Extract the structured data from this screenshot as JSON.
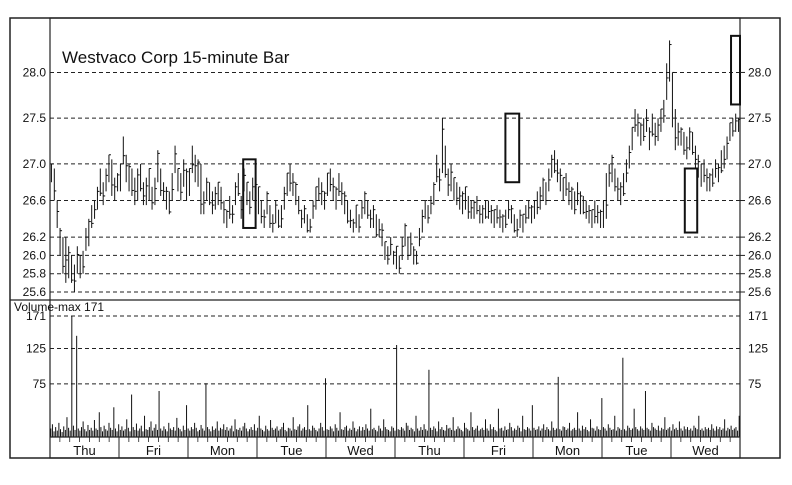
{
  "chart_data": {
    "title": "Westvaco Corp 15-minute Bar",
    "type": "ohlc-bar",
    "price_panel": {
      "ylim": [
        25.6,
        28.3
      ],
      "ticks": [
        "28.0",
        "27.5",
        "27.0",
        "26.6",
        "26.2",
        "26.0",
        "25.8",
        "25.6"
      ],
      "tick_values": [
        28.0,
        27.5,
        27.0,
        26.6,
        26.2,
        26.0,
        25.8,
        25.6
      ],
      "grid": "dashed",
      "series": [
        {
          "day": "Thu",
          "highs": [
            27.0,
            26.95,
            26.6,
            26.3,
            26.2,
            26.2,
            26.1,
            26.0,
            25.9,
            26.1,
            26.0,
            26.05
          ],
          "lows": [
            26.8,
            26.6,
            26.3,
            26.0,
            25.8,
            25.7,
            25.75,
            25.7,
            25.6,
            25.8,
            25.75,
            25.8
          ]
        },
        {
          "day": "Thu",
          "highs": [
            26.3,
            26.4,
            26.55,
            26.6,
            26.75,
            26.95,
            26.8,
            26.95,
            27.1,
            27.05,
            26.85,
            26.9
          ],
          "lows": [
            26.05,
            26.1,
            26.3,
            26.4,
            26.5,
            26.65,
            26.55,
            26.7,
            26.8,
            26.65,
            26.6,
            26.7
          ]
        },
        {
          "day": "Fri",
          "highs": [
            27.0,
            27.3,
            27.1,
            27.0,
            26.95,
            26.85,
            26.95,
            27.0,
            26.8,
            26.85,
            26.95,
            26.75,
            26.85,
            27.15,
            26.95,
            26.8,
            26.75,
            26.7,
            26.9,
            27.2,
            26.95,
            26.9,
            27.05,
            26.95
          ],
          "lows": [
            26.7,
            27.0,
            26.8,
            26.7,
            26.65,
            26.55,
            26.6,
            26.7,
            26.55,
            26.55,
            26.6,
            26.5,
            26.55,
            26.8,
            26.65,
            26.6,
            26.5,
            26.45,
            26.6,
            26.9,
            26.7,
            26.6,
            26.75,
            26.6
          ]
        },
        {
          "day": "Mon",
          "highs": [
            26.95,
            27.2,
            27.1,
            27.05,
            27.0,
            26.7,
            26.85,
            26.8,
            26.7,
            26.75,
            26.8,
            26.75,
            26.6,
            26.5,
            26.65,
            26.55,
            26.8,
            26.9,
            26.65,
            26.95,
            26.8,
            26.7,
            26.85,
            26.8
          ],
          "lows": [
            26.65,
            26.9,
            26.8,
            26.75,
            26.45,
            26.45,
            26.6,
            26.55,
            26.45,
            26.5,
            26.55,
            26.5,
            26.35,
            26.3,
            26.4,
            26.35,
            26.55,
            26.65,
            26.4,
            26.7,
            26.55,
            26.45,
            26.6,
            26.55
          ]
        },
        {
          "day": "Tue",
          "highs": [
            26.75,
            26.6,
            26.5,
            26.7,
            26.55,
            26.45,
            26.6,
            26.5,
            26.55,
            26.75,
            26.9,
            27.0,
            26.9,
            26.8,
            26.65,
            26.5,
            26.55,
            26.45,
            26.4,
            26.6,
            26.75,
            26.85,
            26.8,
            26.7
          ],
          "lows": [
            26.45,
            26.35,
            26.3,
            26.45,
            26.3,
            26.25,
            26.35,
            26.3,
            26.3,
            26.5,
            26.65,
            26.7,
            26.65,
            26.55,
            26.45,
            26.3,
            26.35,
            26.25,
            26.25,
            26.4,
            26.5,
            26.6,
            26.55,
            26.5
          ]
        },
        {
          "day": "Wed",
          "highs": [
            26.9,
            26.95,
            26.85,
            26.75,
            26.9,
            26.8,
            26.7,
            26.6,
            26.5,
            26.4,
            26.55,
            26.45,
            26.6,
            26.7,
            26.6,
            26.5,
            26.55,
            26.45,
            26.4,
            26.35,
            26.15,
            26.1,
            26.2,
            26.05
          ],
          "lows": [
            26.65,
            26.7,
            26.6,
            26.5,
            26.65,
            26.55,
            26.45,
            26.35,
            26.3,
            26.25,
            26.3,
            26.25,
            26.4,
            26.45,
            26.4,
            26.3,
            26.3,
            26.2,
            26.2,
            26.1,
            25.95,
            25.9,
            26.0,
            25.9
          ]
        },
        {
          "day": "Thu",
          "highs": [
            26.1,
            26.0,
            26.2,
            26.35,
            26.2,
            26.25,
            26.1,
            26.05,
            26.3,
            26.5,
            26.6,
            26.55,
            26.65,
            26.8,
            27.1,
            26.95,
            27.5,
            27.2,
            26.95,
            27.0,
            26.85,
            26.8,
            26.75,
            26.7
          ],
          "lows": [
            25.85,
            25.8,
            25.95,
            26.1,
            25.95,
            26.0,
            25.9,
            25.9,
            26.1,
            26.25,
            26.4,
            26.35,
            26.45,
            26.55,
            26.8,
            26.7,
            26.9,
            26.85,
            26.65,
            26.7,
            26.6,
            26.55,
            26.5,
            26.45
          ]
        },
        {
          "day": "Fri",
          "highs": [
            26.75,
            26.65,
            26.6,
            26.6,
            26.65,
            26.55,
            26.55,
            26.6,
            26.6,
            26.55,
            26.5,
            26.55,
            26.5,
            26.45,
            26.5,
            26.6,
            26.55,
            26.45,
            26.4,
            26.5,
            26.45,
            26.55,
            26.6,
            26.55
          ],
          "lows": [
            26.5,
            26.4,
            26.4,
            26.4,
            26.45,
            26.35,
            26.35,
            26.4,
            26.4,
            26.35,
            26.3,
            26.35,
            26.3,
            26.25,
            26.3,
            26.4,
            26.35,
            26.25,
            26.2,
            26.3,
            26.25,
            26.35,
            26.4,
            26.35
          ]
        },
        {
          "day": "Mon",
          "highs": [
            26.6,
            26.7,
            26.75,
            26.85,
            26.8,
            26.95,
            27.1,
            27.15,
            27.05,
            26.95,
            26.85,
            26.9,
            26.8,
            26.75,
            26.7,
            26.8,
            26.7,
            26.65,
            26.6,
            26.55,
            26.5,
            26.6,
            26.55,
            26.5
          ],
          "lows": [
            26.4,
            26.45,
            26.5,
            26.6,
            26.55,
            26.7,
            26.85,
            26.9,
            26.8,
            26.7,
            26.6,
            26.65,
            26.55,
            26.5,
            26.45,
            26.55,
            26.45,
            26.45,
            26.4,
            26.35,
            26.3,
            26.35,
            26.35,
            26.3
          ]
        },
        {
          "day": "Tue",
          "highs": [
            26.6,
            26.9,
            27.0,
            27.1,
            26.95,
            26.85,
            26.8,
            26.9,
            27.05,
            27.2,
            27.4,
            27.6,
            27.55,
            27.45,
            27.5,
            27.6,
            27.4,
            27.55,
            27.45,
            27.5,
            27.6,
            27.7,
            28.1,
            28.35
          ],
          "lows": [
            26.3,
            26.4,
            26.75,
            26.8,
            26.7,
            26.6,
            26.55,
            26.65,
            26.8,
            26.95,
            27.15,
            27.35,
            27.3,
            27.2,
            27.25,
            27.35,
            27.15,
            27.3,
            27.2,
            27.25,
            27.35,
            27.45,
            27.7,
            27.9
          ]
        },
        {
          "day": "Wed",
          "highs": [
            28.0,
            27.6,
            27.45,
            27.4,
            27.35,
            27.3,
            27.4,
            27.35,
            27.2,
            27.1,
            27.0,
            27.05,
            26.95,
            26.9,
            26.95,
            27.05,
            27.0,
            27.15,
            27.2,
            27.3,
            27.45,
            27.5,
            27.55,
            27.5
          ],
          "lows": [
            27.4,
            27.15,
            27.2,
            27.2,
            27.1,
            27.05,
            27.15,
            27.1,
            26.95,
            26.85,
            26.75,
            26.8,
            26.7,
            26.7,
            26.75,
            26.85,
            26.8,
            26.9,
            26.95,
            27.05,
            27.25,
            27.3,
            27.35,
            27.35
          ]
        }
      ],
      "highlight_boxes": [
        {
          "day_index": 2,
          "from": 0.8,
          "to": 0.98,
          "price_low": 26.3,
          "price_high": 27.05
        },
        {
          "day_index": 6,
          "from": 0.6,
          "to": 0.8,
          "price_low": 26.8,
          "price_high": 27.55
        },
        {
          "day_index": 9,
          "from": 0.2,
          "to": 0.38,
          "price_low": 26.25,
          "price_high": 26.95
        },
        {
          "day_index": 9,
          "from": 0.87,
          "to": 1.0,
          "price_low": 27.65,
          "price_high": 28.4
        }
      ]
    },
    "volume_panel": {
      "label": "Volume-max 171",
      "ylim": [
        0,
        171
      ],
      "ticks": [
        "171",
        "125",
        "75"
      ],
      "tick_values": [
        171,
        125,
        75
      ],
      "values": [
        12,
        18,
        8,
        14,
        9,
        20,
        11,
        7,
        15,
        10,
        28,
        13,
        9,
        171,
        16,
        10,
        143,
        12,
        9,
        14,
        22,
        11,
        8,
        17,
        10,
        13,
        9,
        24,
        12,
        10,
        35,
        14,
        8,
        16,
        11,
        9,
        20,
        13,
        10,
        42,
        12,
        8,
        18,
        10,
        15,
        9,
        11,
        25,
        13,
        8,
        60,
        14,
        10,
        19,
        9,
        12,
        16,
        8,
        30,
        11,
        10,
        14,
        22,
        9,
        13,
        18,
        10,
        65,
        12,
        9,
        15,
        11,
        8,
        20,
        12,
        10,
        14,
        9,
        27,
        13,
        11,
        8,
        16,
        10,
        45,
        12,
        9,
        14,
        11,
        20,
        13,
        8,
        10,
        17,
        12,
        9,
        76,
        14,
        11,
        8,
        15,
        10,
        12,
        22,
        9,
        13,
        11,
        18,
        10,
        14,
        9,
        12,
        16,
        8,
        25,
        11,
        10,
        13,
        9,
        15,
        20,
        12,
        8,
        11,
        14,
        10,
        18,
        9,
        13,
        30,
        12,
        10,
        8,
        16,
        11,
        9,
        24,
        13,
        10,
        12,
        15,
        9,
        11,
        14,
        20,
        10,
        8,
        13,
        12,
        9,
        28,
        11,
        10,
        15,
        18,
        9,
        12,
        14,
        10,
        45,
        11,
        9,
        16,
        13,
        10,
        8,
        12,
        20,
        14,
        9,
        83,
        11,
        10,
        15,
        12,
        8,
        18,
        13,
        9,
        35,
        11,
        10,
        14,
        16,
        9,
        12,
        10,
        22,
        13,
        8,
        11,
        15,
        9,
        14,
        10,
        18,
        12,
        9,
        40,
        11,
        13,
        10,
        8,
        16,
        12,
        9,
        25,
        14,
        11,
        10,
        8,
        15,
        13,
        9,
        130,
        11,
        10,
        14,
        12,
        9,
        20,
        16,
        10,
        13,
        11,
        8,
        30,
        12,
        9,
        14,
        10,
        18,
        11,
        9,
        95,
        13,
        10,
        15,
        12,
        8,
        22,
        11,
        14,
        10,
        9,
        17,
        12,
        13,
        10,
        28,
        9,
        11,
        15,
        12,
        10,
        8,
        20,
        13,
        11,
        9,
        35,
        14,
        10,
        12,
        16,
        9,
        11,
        13,
        10,
        25,
        12,
        9,
        18,
        11,
        14,
        10,
        8,
        40,
        12,
        13,
        9,
        15,
        10,
        11,
        20,
        14,
        9,
        12,
        10,
        16,
        13,
        8,
        30,
        11,
        10,
        14,
        12,
        9,
        45,
        13,
        10,
        11,
        15,
        9,
        12,
        18,
        10,
        14,
        11,
        9,
        22,
        13,
        10,
        12,
        85,
        11,
        9,
        15,
        14,
        10,
        12,
        20,
        9,
        11,
        13,
        10,
        35,
        12,
        9,
        16,
        11,
        14,
        10,
        8,
        25,
        13,
        12,
        9,
        15,
        11,
        10,
        55,
        14,
        12,
        9,
        18,
        13,
        10,
        11,
        30,
        9,
        14,
        12,
        10,
        112,
        11,
        9,
        16,
        13,
        10,
        12,
        40,
        14,
        11,
        9,
        15,
        12,
        10,
        65,
        13,
        11,
        9,
        20,
        14,
        12,
        10,
        16,
        9,
        13,
        11,
        28,
        10,
        12,
        14,
        9,
        18,
        11,
        13,
        10,
        22,
        12,
        9,
        15,
        11,
        14,
        10,
        12,
        9,
        16,
        13,
        11,
        30,
        10,
        12,
        9,
        14,
        11,
        13,
        10,
        18,
        12,
        9,
        15,
        11,
        14,
        10,
        12,
        25,
        9,
        13,
        11,
        16,
        10,
        12,
        14,
        9,
        30
      ]
    },
    "x_axis": {
      "categories": [
        "Thu",
        "Fri",
        "Mon",
        "Tue",
        "Wed",
        "Thu",
        "Fri",
        "Mon",
        "Tue",
        "Wed"
      ]
    }
  }
}
